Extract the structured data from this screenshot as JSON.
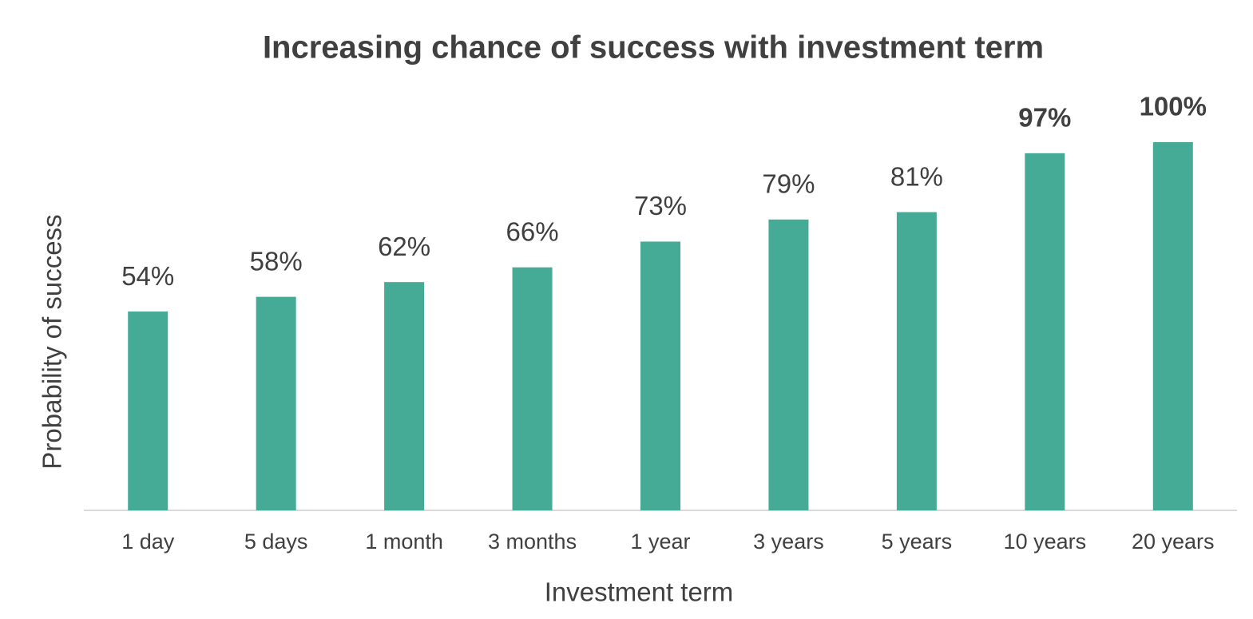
{
  "chart_data": {
    "type": "bar",
    "title": "Increasing chance of success with investment term",
    "x_label": "Investment term",
    "y_label": "Probability of success",
    "categories": [
      "1 day",
      "5 days",
      "1 month",
      "3 months",
      "1 year",
      "3 years",
      "5 years",
      "10 years",
      "20 years"
    ],
    "values": [
      54,
      58,
      62,
      66,
      73,
      79,
      81,
      97,
      100
    ],
    "value_labels": [
      "54%",
      "58%",
      "62%",
      "66%",
      "73%",
      "79%",
      "81%",
      "97%",
      "100%"
    ],
    "color": "#45aa96",
    "ylim": [
      0,
      100
    ]
  }
}
